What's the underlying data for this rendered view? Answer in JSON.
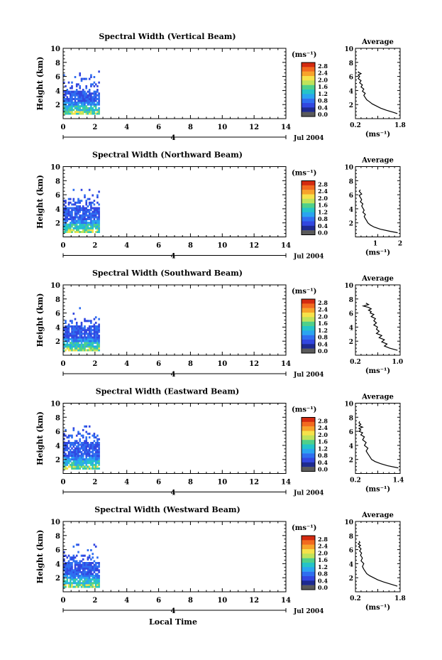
{
  "figure": {
    "xlabel": "Local Time",
    "date_label": "Jul 2004",
    "day_label": "4",
    "colorbar_unit": "(ms⁻¹)",
    "colorbar_ticks": [
      "2.8",
      "2.4",
      "2.0",
      "1.6",
      "1.2",
      "0.8",
      "0.4",
      "0.0"
    ],
    "colorbar_colors": [
      "#d42a10",
      "#f26a1f",
      "#f7a32a",
      "#f6e24a",
      "#bfe35a",
      "#4fd08a",
      "#25c4c8",
      "#2aa4f0",
      "#2f6ef0",
      "#3247e0",
      "#1e2a90",
      "#5a5a5a"
    ]
  },
  "chart_data": [
    {
      "type": "heatmap",
      "title": "Spectral Width (Vertical Beam)",
      "ylabel": "Height (km)",
      "xlim": [
        0,
        14
      ],
      "ylim": [
        0,
        10
      ],
      "xticks": [
        "0",
        "2",
        "4",
        "6",
        "8",
        "10",
        "12",
        "14"
      ],
      "yticks": [
        "2",
        "4",
        "6",
        "8",
        "10"
      ],
      "data_extent": {
        "time_range": [
          0,
          2.3
        ],
        "height_range": [
          0.6,
          6.6
        ],
        "dense_top_km": 3.9
      },
      "profile": {
        "title": "Average",
        "xlabel": "(ms⁻¹)",
        "xticks": [
          "0.2",
          "1.8"
        ],
        "xlim": [
          0.2,
          1.8
        ],
        "ylim": [
          0,
          10
        ],
        "yticks": [
          "2",
          "4",
          "6",
          "8",
          "10"
        ],
        "x": [
          1.7,
          1.55,
          1.3,
          1.1,
          0.95,
          0.8,
          0.7,
          0.6,
          0.55,
          0.5,
          0.55,
          0.45,
          0.5,
          0.4,
          0.45,
          0.35,
          0.4,
          0.3,
          0.35,
          0.3,
          0.4,
          0.35,
          0.3,
          0.32
        ],
        "y": [
          0.7,
          0.9,
          1.2,
          1.5,
          1.8,
          2.1,
          2.4,
          2.7,
          3.0,
          3.3,
          3.6,
          3.9,
          4.2,
          4.5,
          4.8,
          5.1,
          5.4,
          5.7,
          6.0,
          6.2,
          6.4,
          6.5,
          6.6,
          6.7
        ]
      }
    },
    {
      "type": "heatmap",
      "title": "Spectral Width (Northward Beam)",
      "ylabel": "Height (km)",
      "xlim": [
        0,
        14
      ],
      "ylim": [
        0,
        10
      ],
      "xticks": [
        "0",
        "2",
        "4",
        "6",
        "8",
        "10",
        "12",
        "14"
      ],
      "yticks": [
        "2",
        "4",
        "6",
        "8",
        "10"
      ],
      "data_extent": {
        "time_range": [
          0,
          2.3
        ],
        "height_range": [
          0.6,
          6.6
        ],
        "dense_top_km": 4.2
      },
      "profile": {
        "title": "Average",
        "xlabel": "(ms⁻¹)",
        "xticks": [
          "1",
          "2"
        ],
        "xlim": [
          0.2,
          2.0
        ],
        "ylim": [
          0,
          10
        ],
        "yticks": [
          "2",
          "4",
          "6",
          "8",
          "10"
        ],
        "x": [
          1.9,
          1.6,
          1.2,
          0.95,
          0.8,
          0.7,
          0.65,
          0.6,
          0.55,
          0.6,
          0.5,
          0.55,
          0.5,
          0.45,
          0.5,
          0.4,
          0.45,
          0.4,
          0.35,
          0.45,
          0.4,
          0.35,
          0.4
        ],
        "y": [
          0.6,
          0.8,
          1.1,
          1.4,
          1.7,
          2.0,
          2.3,
          2.6,
          2.9,
          3.2,
          3.5,
          3.8,
          4.1,
          4.4,
          4.7,
          5.0,
          5.3,
          5.6,
          5.9,
          6.1,
          6.3,
          6.5,
          6.7
        ]
      }
    },
    {
      "type": "heatmap",
      "title": "Spectral Width (Southward Beam)",
      "ylabel": "Height (km)",
      "xlim": [
        0,
        14
      ],
      "ylim": [
        0,
        10
      ],
      "xticks": [
        "0",
        "2",
        "4",
        "6",
        "8",
        "10",
        "12",
        "14"
      ],
      "yticks": [
        "2",
        "4",
        "6",
        "8",
        "10"
      ],
      "data_extent": {
        "time_range": [
          0,
          2.3
        ],
        "height_range": [
          0.6,
          6.6
        ],
        "dense_top_km": 4.0
      },
      "profile": {
        "title": "Average",
        "xlabel": "(ms⁻¹)",
        "xticks": [
          "0.2",
          "1.0"
        ],
        "xlim": [
          0.2,
          1.05
        ],
        "ylim": [
          0,
          10
        ],
        "yticks": [
          "2",
          "4",
          "6",
          "8",
          "10"
        ],
        "x": [
          1.0,
          0.85,
          0.75,
          0.8,
          0.7,
          0.75,
          0.65,
          0.7,
          0.6,
          0.65,
          0.6,
          0.62,
          0.55,
          0.6,
          0.55,
          0.58,
          0.5,
          0.55,
          0.48,
          0.5,
          0.45,
          0.5,
          0.45,
          0.35,
          0.45,
          0.4
        ],
        "y": [
          0.7,
          1.0,
          1.3,
          1.6,
          1.9,
          2.2,
          2.5,
          2.8,
          3.1,
          3.4,
          3.7,
          4.0,
          4.3,
          4.6,
          4.9,
          5.2,
          5.5,
          5.8,
          6.0,
          6.2,
          6.4,
          6.6,
          6.8,
          7.0,
          7.2,
          7.4
        ]
      }
    },
    {
      "type": "heatmap",
      "title": "Spectral Width (Eastward Beam)",
      "ylabel": "Height (km)",
      "xlim": [
        0,
        14
      ],
      "ylim": [
        0,
        10
      ],
      "xticks": [
        "0",
        "2",
        "4",
        "6",
        "8",
        "10",
        "12",
        "14"
      ],
      "yticks": [
        "2",
        "4",
        "6",
        "8",
        "10"
      ],
      "data_extent": {
        "time_range": [
          0,
          2.3
        ],
        "height_range": [
          0.6,
          6.6
        ],
        "dense_top_km": 4.4
      },
      "profile": {
        "title": "Average",
        "xlabel": "(ms⁻¹)",
        "xticks": [
          "0.2",
          "1.4"
        ],
        "xlim": [
          0.2,
          1.45
        ],
        "ylim": [
          0,
          10
        ],
        "yticks": [
          "2",
          "4",
          "6",
          "8",
          "10"
        ],
        "x": [
          1.4,
          1.1,
          0.9,
          0.75,
          0.65,
          0.6,
          0.55,
          0.5,
          0.55,
          0.45,
          0.5,
          0.4,
          0.45,
          0.35,
          0.4,
          0.3,
          0.35,
          0.3,
          0.4,
          0.3,
          0.35,
          0.3,
          0.32
        ],
        "y": [
          0.8,
          1.1,
          1.4,
          1.7,
          2.0,
          2.4,
          2.8,
          3.2,
          3.6,
          4.0,
          4.4,
          4.8,
          5.2,
          5.5,
          5.8,
          6.0,
          6.2,
          6.4,
          6.6,
          6.8,
          7.0,
          7.2,
          7.4
        ]
      }
    },
    {
      "type": "heatmap",
      "title": "Spectral Width (Westward Beam)",
      "ylabel": "Height (km)",
      "xlim": [
        0,
        14
      ],
      "ylim": [
        0,
        10
      ],
      "xticks": [
        "0",
        "2",
        "4",
        "6",
        "8",
        "10",
        "12",
        "14"
      ],
      "yticks": [
        "2",
        "4",
        "6",
        "8",
        "10"
      ],
      "data_extent": {
        "time_range": [
          0,
          2.3
        ],
        "height_range": [
          0.6,
          6.6
        ],
        "dense_top_km": 4.0
      },
      "profile": {
        "title": "Average",
        "xlabel": "(ms⁻¹)",
        "xticks": [
          "0.2",
          "1.8"
        ],
        "xlim": [
          0.2,
          1.8
        ],
        "ylim": [
          0,
          10
        ],
        "yticks": [
          "2",
          "4",
          "6",
          "8",
          "10"
        ],
        "x": [
          1.7,
          1.45,
          1.2,
          1.0,
          0.85,
          0.7,
          0.6,
          0.55,
          0.5,
          0.45,
          0.5,
          0.4,
          0.45,
          0.38,
          0.42,
          0.35,
          0.4,
          0.32,
          0.38,
          0.3,
          0.36,
          0.33
        ],
        "y": [
          0.8,
          1.1,
          1.4,
          1.7,
          2.0,
          2.3,
          2.6,
          2.9,
          3.2,
          3.6,
          4.0,
          4.4,
          4.8,
          5.2,
          5.5,
          5.8,
          6.1,
          6.4,
          6.6,
          6.8,
          7.0,
          7.2
        ]
      }
    }
  ]
}
